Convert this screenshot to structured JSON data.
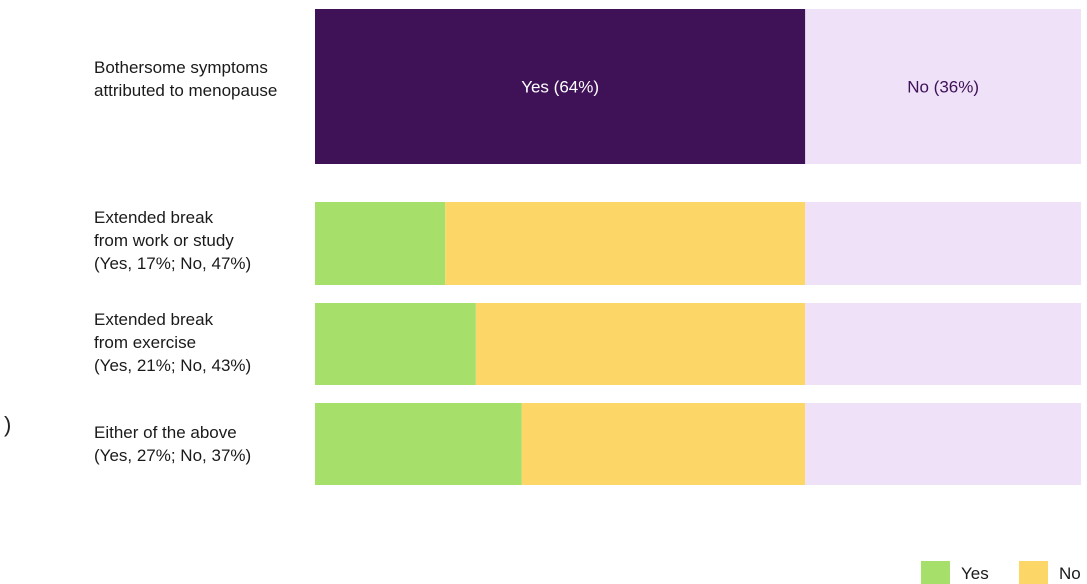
{
  "chart_data": {
    "type": "bar",
    "orientation": "horizontal",
    "stacked": true,
    "grid": false,
    "legend_position": "bottom-right",
    "xlim": [
      0,
      100
    ],
    "rows": [
      {
        "label": "Bothersome symptoms\nattributed to menopause",
        "segments": [
          {
            "series": "Yes (64%)",
            "value": 64,
            "color": "#3f1157",
            "text": "Yes (64%)",
            "text_color": "#ffffff"
          },
          {
            "series": "No (36%)",
            "value": 36,
            "color": "#eee1f8",
            "text": "No (36%)",
            "text_color": "#3f1157"
          }
        ]
      },
      {
        "label": "Extended break\nfrom work or study\n(Yes, 17%; No, 47%)",
        "segments": [
          {
            "series": "Yes",
            "value": 17,
            "color": "#a6e06b"
          },
          {
            "series": "No",
            "value": 47,
            "color": "#fcd667"
          },
          {
            "series": "No (36%)",
            "value": 36,
            "color": "#eee1f8"
          }
        ]
      },
      {
        "label": "Extended break\nfrom exercise\n(Yes, 21%; No, 43%)",
        "segments": [
          {
            "series": "Yes",
            "value": 21,
            "color": "#a6e06b"
          },
          {
            "series": "No",
            "value": 43,
            "color": "#fcd667"
          },
          {
            "series": "No (36%)",
            "value": 36,
            "color": "#eee1f8"
          }
        ]
      },
      {
        "label": "Either of the above\n(Yes, 27%; No, 37%)",
        "segments": [
          {
            "series": "Yes",
            "value": 27,
            "color": "#a6e06b"
          },
          {
            "series": "No",
            "value": 37,
            "color": "#fcd667"
          },
          {
            "series": "No (36%)",
            "value": 36,
            "color": "#eee1f8"
          }
        ]
      }
    ],
    "legend": [
      {
        "label": "Yes",
        "color": "#a6e06b"
      },
      {
        "label": "No",
        "color": "#fcd667"
      }
    ]
  },
  "stray_mark": ")"
}
